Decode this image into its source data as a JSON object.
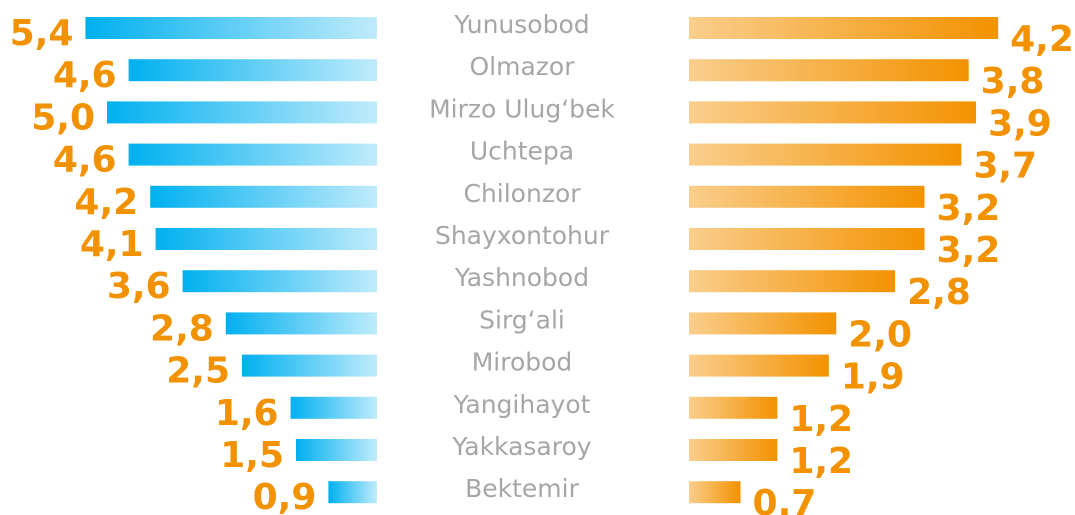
{
  "chart_data": {
    "type": "butterfly-bar",
    "categories": [
      "Yunusobod",
      "Olmazor",
      "Mirzo Ulug‘bek",
      "Uchtepa",
      "Chilonzor",
      "Shayxontohur",
      "Yashnobod",
      "Sirg‘ali",
      "Mirobod",
      "Yangihayot",
      "Yakkasaroy",
      "Bektemir"
    ],
    "series": [
      {
        "color": "#00b0f0",
        "values": [
          5.4,
          4.6,
          5.0,
          4.6,
          4.2,
          4.1,
          3.6,
          2.8,
          2.5,
          1.6,
          1.5,
          0.9
        ],
        "value_labels": [
          "5,4",
          "4,6",
          "5,0",
          "4,6",
          "4,2",
          "4,1",
          "3,6",
          "2,8",
          "2,5",
          "1,6",
          "1,5",
          "0,9"
        ]
      },
      {
        "color": "#f39200",
        "values": [
          4.2,
          3.8,
          3.9,
          3.7,
          3.2,
          3.2,
          2.8,
          2.0,
          1.9,
          1.2,
          1.2,
          0.7
        ],
        "value_labels": [
          "4,2",
          "3,8",
          "3,9",
          "3,7",
          "3,2",
          "3,2",
          "2,8",
          "2,0",
          "1,9",
          "1,2",
          "1,2",
          "0.7"
        ]
      }
    ],
    "label_color": "#f39200",
    "category_color": "#a6a6a6"
  }
}
